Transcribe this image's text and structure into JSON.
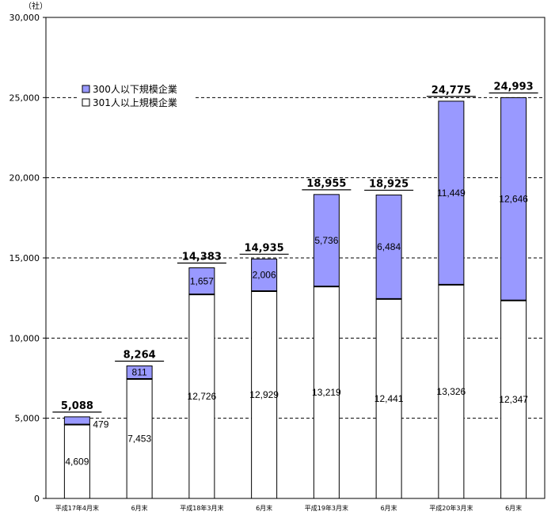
{
  "chart_data": {
    "type": "bar",
    "stacked": true,
    "unit_label": "（社）",
    "categories": [
      "平成17年4月末",
      "6月末",
      "平成18年3月末",
      "6月末",
      "平成19年3月末",
      "6月末",
      "平成20年3月末",
      "6月末"
    ],
    "series": [
      {
        "name": "301人以上規模企業",
        "values": [
          4609,
          7453,
          12726,
          12929,
          13219,
          12441,
          13326,
          12347
        ],
        "color": "#ffffff"
      },
      {
        "name": "300人以下規模企業",
        "values": [
          479,
          811,
          1657,
          2006,
          5736,
          6484,
          11449,
          12646
        ],
        "color": "#9999ff"
      }
    ],
    "value_labels": {
      "lower": [
        "4,609",
        "7,453",
        "12,726",
        "12,929",
        "13,219",
        "12,441",
        "13,326",
        "12,347"
      ],
      "upper": [
        "479",
        "811",
        "1,657",
        "2,006",
        "5,736",
        "6,484",
        "11,449",
        "12,646"
      ]
    },
    "totals": [
      5088,
      8264,
      14383,
      14935,
      18955,
      18925,
      24775,
      24993
    ],
    "total_labels": [
      "5,088",
      "8,264",
      "14,383",
      "14,935",
      "18,955",
      "18,925",
      "24,775",
      "24,993"
    ],
    "ylim": [
      0,
      30000
    ],
    "yticks": [
      0,
      5000,
      10000,
      15000,
      20000,
      25000,
      30000
    ],
    "ytick_labels": [
      "0",
      "5,000",
      "10,000",
      "15,000",
      "20,000",
      "25,000",
      "30,000"
    ],
    "grid": true,
    "legend_placement": "top-left",
    "legend_entries": [
      "300人以下規模企業",
      "301人以上規模企業"
    ],
    "title": "",
    "xlabel": "",
    "ylabel": ""
  }
}
